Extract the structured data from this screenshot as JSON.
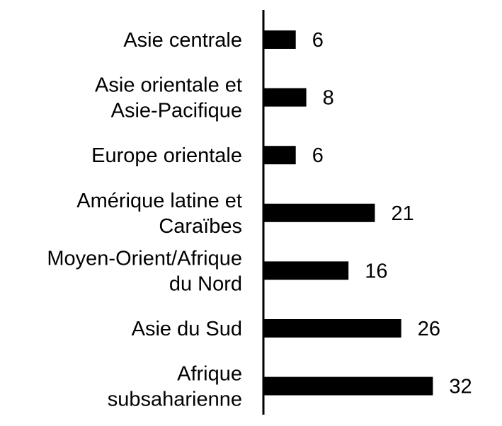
{
  "chart_data": {
    "type": "bar",
    "orientation": "horizontal",
    "title": "",
    "xlabel": "",
    "ylabel": "",
    "categories": [
      [
        "Asie centrale"
      ],
      [
        "Asie orientale et",
        "Asie-Pacifique"
      ],
      [
        "Europe orientale"
      ],
      [
        "Amérique latine et",
        "Caraïbes"
      ],
      [
        "Moyen-Orient/Afrique",
        "du Nord"
      ],
      [
        "Asie du Sud"
      ],
      [
        "Afrique",
        "subsaharienne"
      ]
    ],
    "values": [
      6,
      8,
      6,
      21,
      16,
      26,
      32
    ],
    "data_labels": [
      "6",
      "8",
      "6",
      "21",
      "16",
      "26",
      "32"
    ],
    "xlim": [
      0,
      35
    ],
    "grid": false,
    "legend": "none",
    "bar_color": "#000000"
  }
}
